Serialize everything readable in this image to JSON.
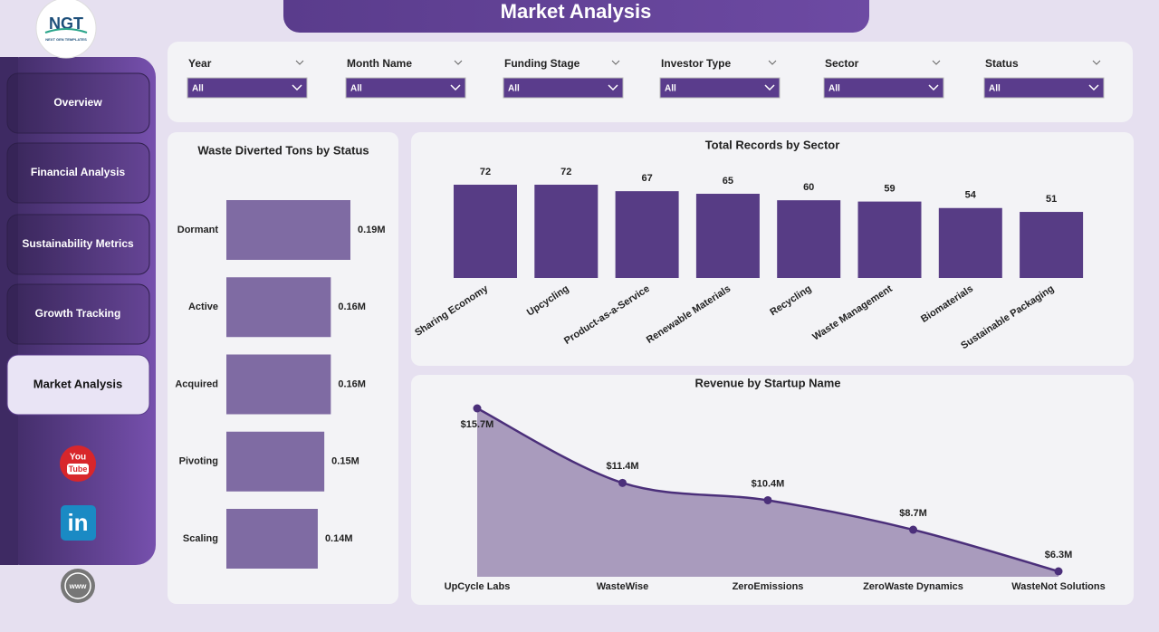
{
  "header": {
    "title": "Market Analysis"
  },
  "logo": {
    "text": "NGT",
    "subtext": "NEXT GEN TEMPLATES"
  },
  "nav": {
    "items": [
      "Overview",
      "Financial Analysis",
      "Sustainability Metrics",
      "Growth Tracking",
      "Market Analysis"
    ],
    "active": 4
  },
  "social": {
    "youtube": [
      "You",
      "Tube"
    ],
    "linkedin": "in",
    "web": "www"
  },
  "filters": [
    {
      "label": "Year",
      "value": "All"
    },
    {
      "label": "Month Name",
      "value": "All"
    },
    {
      "label": "Funding Stage",
      "value": "All"
    },
    {
      "label": "Investor Type",
      "value": "All"
    },
    {
      "label": "Sector",
      "value": "All"
    },
    {
      "label": "Status",
      "value": "All"
    }
  ],
  "charts": [
    {
      "type": "hbar",
      "title": "Waste Diverted Tons by Status",
      "color": "#7f6ba3",
      "categories": [
        "Dormant",
        "Active",
        "Acquired",
        "Pivoting",
        "Scaling"
      ],
      "values": [
        190000,
        160000,
        160000,
        150000,
        140000
      ],
      "value_labels": [
        "0.19M",
        "0.16M",
        "0.16M",
        "0.15M",
        "0.14M"
      ]
    },
    {
      "type": "bar",
      "title": "Total Records by Sector",
      "color": "#573c85",
      "categories": [
        "Sharing Economy",
        "Upcycling",
        "Product-as-a-Service",
        "Renewable Materials",
        "Recycling",
        "Waste Management",
        "Biomaterials",
        "Sustainable Packaging"
      ],
      "values": [
        72,
        72,
        67,
        65,
        60,
        59,
        54,
        51
      ]
    },
    {
      "type": "area",
      "title": "Revenue by Startup Name",
      "color": "#4b2f7a",
      "fill": "#a99bbd",
      "categories": [
        "UpCycle Labs",
        "WasteWise",
        "ZeroEmissions",
        "ZeroWaste Dynamics",
        "WasteNot Solutions"
      ],
      "values": [
        15700000,
        11400000,
        10400000,
        8700000,
        6300000
      ],
      "value_labels": [
        "$15.7M",
        "$11.4M",
        "$10.4M",
        "$8.7M",
        "$6.3M"
      ]
    }
  ]
}
